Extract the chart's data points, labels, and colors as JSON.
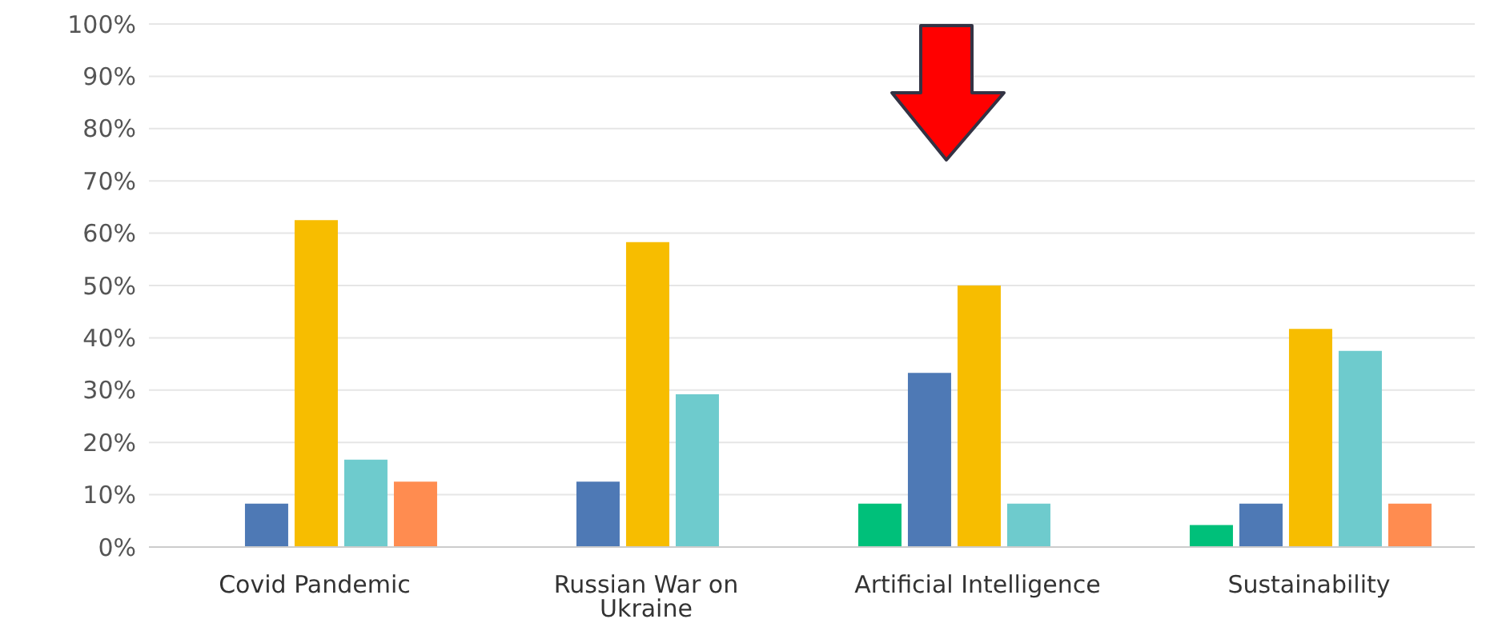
{
  "chart_data": {
    "type": "bar",
    "categories": [
      "Covid Pandemic",
      "Russian War on Ukraine",
      "Artificial Intelligence",
      "Sustainability"
    ],
    "series": [
      {
        "color": "#00c07a",
        "values": [
          0,
          0,
          8.3,
          4.2
        ]
      },
      {
        "color": "#4e79b5",
        "values": [
          8.3,
          12.5,
          33.3,
          8.3
        ]
      },
      {
        "color": "#f7bd00",
        "values": [
          62.5,
          58.3,
          50,
          41.7
        ]
      },
      {
        "color": "#6ecbcd",
        "values": [
          16.7,
          29.2,
          8.3,
          37.5
        ]
      },
      {
        "color": "#ff8c50",
        "values": [
          12.5,
          0,
          0,
          8.3
        ]
      }
    ],
    "ylim": [
      0,
      100
    ],
    "yticks": [
      {
        "value": 0,
        "label": "0%"
      },
      {
        "value": 10,
        "label": "10%"
      },
      {
        "value": 20,
        "label": "20%"
      },
      {
        "value": 30,
        "label": "30%"
      },
      {
        "value": 40,
        "label": "40%"
      },
      {
        "value": 50,
        "label": "50%"
      },
      {
        "value": 60,
        "label": "60%"
      },
      {
        "value": 70,
        "label": "70%"
      },
      {
        "value": 80,
        "label": "80%"
      },
      {
        "value": 90,
        "label": "90%"
      },
      {
        "value": 100,
        "label": "100%"
      }
    ],
    "grid": "y"
  }
}
